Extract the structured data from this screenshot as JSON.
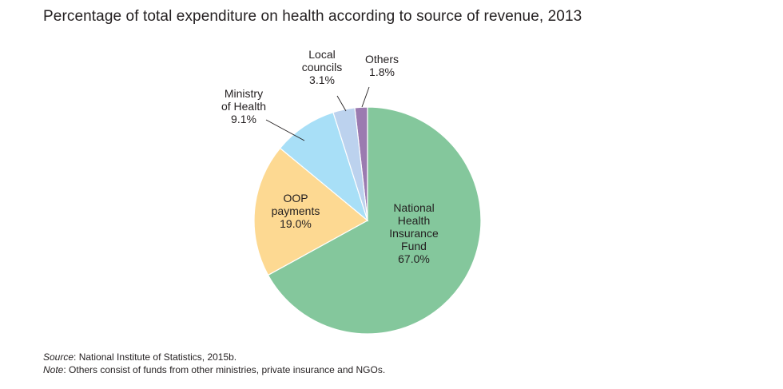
{
  "title": "Percentage of total expenditure on health according to source of revenue, 2013",
  "chart_data": {
    "type": "pie",
    "title": "Percentage of total expenditure on health according to source of revenue, 2013",
    "unit": "%",
    "slices": [
      {
        "key": "others",
        "label_lines": [
          "Others",
          "1.8%"
        ],
        "label": "Others",
        "value": 1.8,
        "color": "#9b7bb0"
      },
      {
        "key": "nhif",
        "label_lines": [
          "National",
          "Health",
          "Insurance",
          "Fund",
          "67.0%"
        ],
        "label": "National Health Insurance Fund",
        "value": 67.0,
        "color": "#84c79c"
      },
      {
        "key": "oop",
        "label_lines": [
          "OOP",
          "payments",
          "19.0%"
        ],
        "label": "OOP payments",
        "value": 19.0,
        "color": "#fdd992"
      },
      {
        "key": "moh",
        "label_lines": [
          "Ministry",
          "of Health",
          "9.1%"
        ],
        "label": "Ministry of Health",
        "value": 9.1,
        "color": "#a8dff7"
      },
      {
        "key": "local",
        "label_lines": [
          "Local",
          "councils",
          "3.1%"
        ],
        "label": "Local councils",
        "value": 3.1,
        "color": "#bcd2ee"
      }
    ]
  },
  "footer": {
    "source_label": "Source",
    "source_text": ": National Institute of Statistics, 2015b.",
    "note_label": "Note",
    "note_text": ": Others consist of funds from other ministries, private insurance and NGOs."
  }
}
